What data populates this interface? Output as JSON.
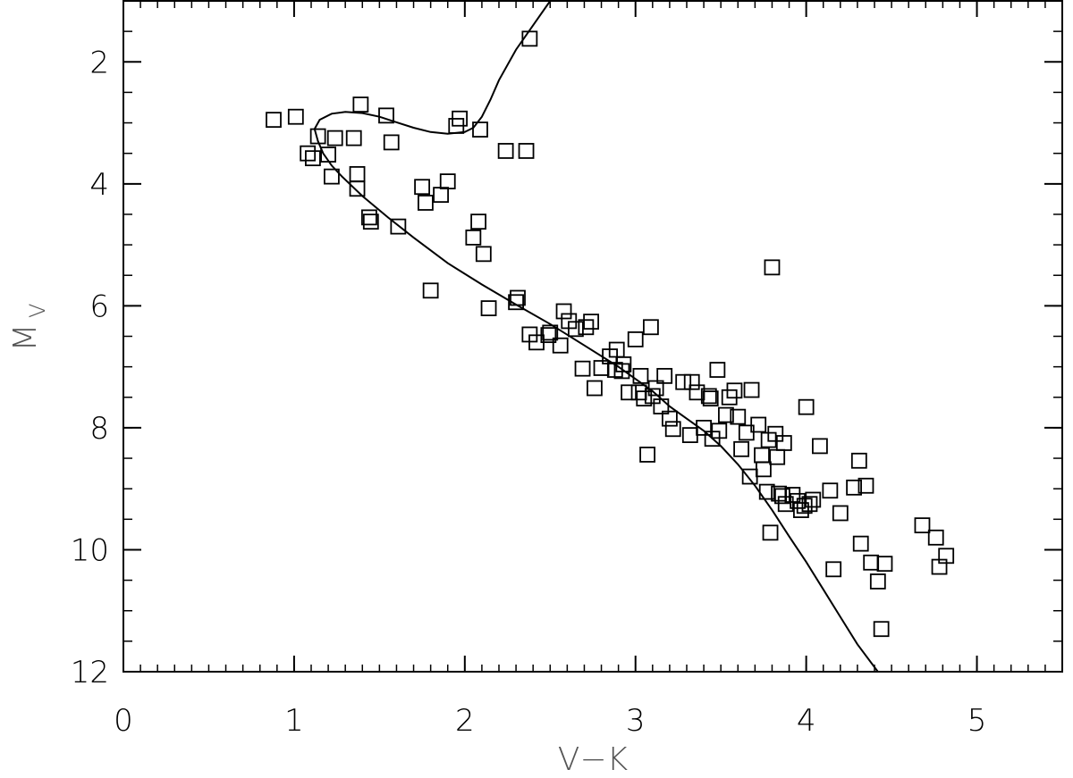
{
  "chart_data": {
    "type": "scatter",
    "title": "",
    "xlabel": "V−K",
    "ylabel": "M",
    "ylabel_subscript": "V",
    "xlim": [
      0,
      5.5
    ],
    "ylim": [
      12,
      1
    ],
    "y_inverted": true,
    "x_major_ticks": [
      0,
      1,
      2,
      3,
      4,
      5
    ],
    "x_tick_labels": [
      "0",
      "1",
      "2",
      "3",
      "4",
      "5"
    ],
    "x_minor_step": 0.1,
    "y_major_ticks": [
      2,
      4,
      6,
      8,
      10,
      12
    ],
    "y_tick_labels": [
      "2",
      "4",
      "6",
      "8",
      "10",
      "12"
    ],
    "y_minor_step": 0.5,
    "grid": false,
    "marker": "open-square",
    "colors": {
      "axes": "#000000",
      "labels": "#555555",
      "background": "#ffffff"
    },
    "series": [
      {
        "kind": "points",
        "points": [
          [
            0.88,
            2.95
          ],
          [
            1.01,
            2.9
          ],
          [
            1.08,
            3.5
          ],
          [
            1.11,
            3.58
          ],
          [
            1.14,
            3.22
          ],
          [
            1.2,
            3.52
          ],
          [
            1.22,
            3.88
          ],
          [
            1.24,
            3.25
          ],
          [
            1.35,
            3.25
          ],
          [
            1.37,
            3.84
          ],
          [
            1.37,
            4.08
          ],
          [
            1.39,
            2.7
          ],
          [
            1.44,
            4.55
          ],
          [
            1.45,
            4.62
          ],
          [
            1.54,
            2.88
          ],
          [
            1.57,
            3.32
          ],
          [
            1.61,
            4.7
          ],
          [
            1.75,
            4.05
          ],
          [
            1.77,
            4.31
          ],
          [
            1.8,
            5.75
          ],
          [
            1.86,
            4.18
          ],
          [
            1.9,
            3.96
          ],
          [
            1.95,
            3.05
          ],
          [
            1.97,
            2.93
          ],
          [
            2.05,
            4.88
          ],
          [
            2.08,
            4.62
          ],
          [
            2.09,
            3.11
          ],
          [
            2.11,
            5.15
          ],
          [
            2.14,
            6.04
          ],
          [
            2.24,
            3.46
          ],
          [
            2.3,
            5.94
          ],
          [
            2.31,
            5.87
          ],
          [
            2.36,
            3.46
          ],
          [
            2.38,
            1.62
          ],
          [
            2.38,
            6.47
          ],
          [
            2.42,
            6.6
          ],
          [
            2.49,
            6.48
          ],
          [
            2.5,
            6.44
          ],
          [
            2.56,
            6.65
          ],
          [
            2.58,
            6.09
          ],
          [
            2.61,
            6.25
          ],
          [
            2.65,
            6.38
          ],
          [
            2.69,
            7.03
          ],
          [
            2.71,
            6.35
          ],
          [
            2.74,
            6.26
          ],
          [
            2.76,
            7.35
          ],
          [
            2.8,
            7.02
          ],
          [
            2.85,
            6.83
          ],
          [
            2.88,
            7.05
          ],
          [
            2.89,
            6.72
          ],
          [
            2.92,
            7.07
          ],
          [
            2.93,
            6.96
          ],
          [
            2.96,
            7.42
          ],
          [
            3.0,
            6.55
          ],
          [
            3.02,
            7.42
          ],
          [
            3.03,
            7.15
          ],
          [
            3.05,
            7.52
          ],
          [
            3.07,
            8.44
          ],
          [
            3.09,
            6.35
          ],
          [
            3.1,
            7.48
          ],
          [
            3.12,
            7.35
          ],
          [
            3.15,
            7.65
          ],
          [
            3.17,
            7.15
          ],
          [
            3.2,
            7.85
          ],
          [
            3.22,
            8.02
          ],
          [
            3.28,
            7.25
          ],
          [
            3.32,
            8.12
          ],
          [
            3.33,
            7.25
          ],
          [
            3.36,
            7.42
          ],
          [
            3.4,
            8.0
          ],
          [
            3.43,
            7.48
          ],
          [
            3.44,
            7.52
          ],
          [
            3.45,
            8.18
          ],
          [
            3.48,
            7.05
          ],
          [
            3.49,
            8.05
          ],
          [
            3.53,
            7.79
          ],
          [
            3.55,
            7.5
          ],
          [
            3.58,
            7.39
          ],
          [
            3.6,
            7.82
          ],
          [
            3.62,
            8.35
          ],
          [
            3.65,
            8.08
          ],
          [
            3.67,
            8.8
          ],
          [
            3.68,
            7.38
          ],
          [
            3.72,
            7.95
          ],
          [
            3.74,
            8.45
          ],
          [
            3.75,
            8.68
          ],
          [
            3.77,
            9.05
          ],
          [
            3.78,
            8.2
          ],
          [
            3.79,
            9.72
          ],
          [
            3.8,
            5.37
          ],
          [
            3.82,
            8.1
          ],
          [
            3.83,
            8.48
          ],
          [
            3.84,
            9.08
          ],
          [
            3.86,
            9.12
          ],
          [
            3.87,
            8.25
          ],
          [
            3.88,
            9.25
          ],
          [
            3.92,
            9.1
          ],
          [
            3.95,
            9.2
          ],
          [
            3.97,
            9.35
          ],
          [
            3.99,
            9.28
          ],
          [
            4.0,
            7.66
          ],
          [
            4.02,
            9.25
          ],
          [
            4.04,
            9.18
          ],
          [
            4.08,
            8.3
          ],
          [
            4.14,
            9.03
          ],
          [
            4.16,
            10.32
          ],
          [
            4.2,
            9.4
          ],
          [
            4.28,
            8.98
          ],
          [
            4.31,
            8.54
          ],
          [
            4.32,
            9.9
          ],
          [
            4.35,
            8.95
          ],
          [
            4.38,
            10.21
          ],
          [
            4.42,
            10.52
          ],
          [
            4.44,
            11.3
          ],
          [
            4.46,
            10.23
          ],
          [
            4.68,
            9.6
          ],
          [
            4.76,
            9.8
          ],
          [
            4.78,
            10.28
          ],
          [
            4.82,
            10.1
          ]
        ]
      },
      {
        "kind": "curve",
        "points": [
          [
            2.5,
            1.0
          ],
          [
            2.4,
            1.4
          ],
          [
            2.3,
            1.8
          ],
          [
            2.2,
            2.3
          ],
          [
            2.15,
            2.62
          ],
          [
            2.1,
            2.9
          ],
          [
            2.05,
            3.08
          ],
          [
            2.0,
            3.15
          ],
          [
            1.9,
            3.18
          ],
          [
            1.8,
            3.15
          ],
          [
            1.7,
            3.08
          ],
          [
            1.6,
            2.99
          ],
          [
            1.5,
            2.9
          ],
          [
            1.4,
            2.84
          ],
          [
            1.3,
            2.82
          ],
          [
            1.22,
            2.85
          ],
          [
            1.15,
            2.95
          ],
          [
            1.12,
            3.1
          ],
          [
            1.14,
            3.3
          ],
          [
            1.17,
            3.5
          ],
          [
            1.22,
            3.7
          ],
          [
            1.28,
            3.88
          ],
          [
            1.4,
            4.2
          ],
          [
            1.55,
            4.55
          ],
          [
            1.7,
            4.88
          ],
          [
            1.9,
            5.3
          ],
          [
            2.1,
            5.65
          ],
          [
            2.3,
            5.98
          ],
          [
            2.5,
            6.3
          ],
          [
            2.7,
            6.65
          ],
          [
            2.9,
            7.0
          ],
          [
            3.1,
            7.4
          ],
          [
            3.2,
            7.65
          ],
          [
            3.3,
            7.85
          ],
          [
            3.4,
            8.05
          ],
          [
            3.5,
            8.3
          ],
          [
            3.6,
            8.6
          ],
          [
            3.7,
            8.95
          ],
          [
            3.8,
            9.35
          ],
          [
            3.9,
            9.78
          ],
          [
            4.0,
            10.2
          ],
          [
            4.1,
            10.65
          ],
          [
            4.2,
            11.1
          ],
          [
            4.3,
            11.55
          ],
          [
            4.42,
            12.0
          ]
        ]
      }
    ]
  }
}
